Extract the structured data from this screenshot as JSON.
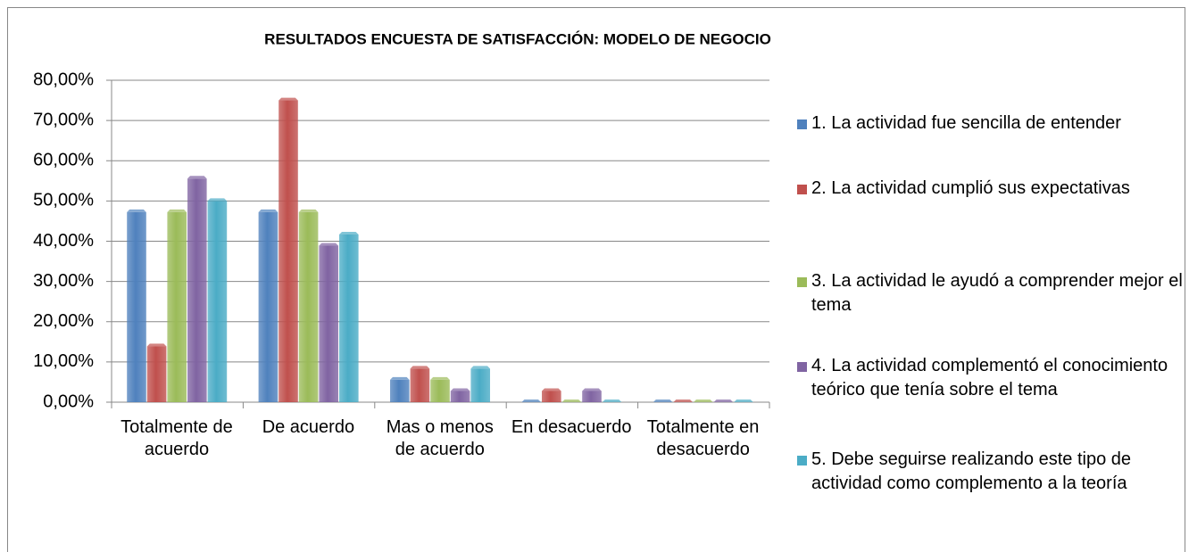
{
  "chart_data": {
    "type": "bar",
    "title": "RESULTADOS ENCUESTA DE SATISFACCIÓN: MODELO DE NEGOCIO",
    "categories": [
      "Totalmente de acuerdo",
      "De acuerdo",
      "Mas o menos de acuerdo",
      "En desacuerdo",
      "Totalmente en desacuerdo"
    ],
    "series": [
      {
        "name": "1. La actividad fue sencilla de entender",
        "color": "#4f81bd",
        "values": [
          47.22,
          47.22,
          5.56,
          0,
          0
        ]
      },
      {
        "name": "2. La actividad cumplió sus expectativas",
        "color": "#c0504d",
        "values": [
          13.89,
          75,
          8.33,
          2.78,
          0
        ]
      },
      {
        "name": "3. La actividad le ayudó a comprender mejor el tema",
        "color": "#9bbb59",
        "values": [
          47.22,
          47.22,
          5.56,
          0,
          0
        ]
      },
      {
        "name": "4. La actividad complementó el conocimiento teórico que tenía sobre el tema",
        "color": "#8064a2",
        "values": [
          55.56,
          38.89,
          2.78,
          2.78,
          0
        ]
      },
      {
        "name": "5. Debe seguirse realizando este tipo de actividad como complemento a la teoría",
        "color": "#4bacc6",
        "values": [
          50,
          41.67,
          8.33,
          0,
          0
        ]
      }
    ],
    "ylim": [
      0,
      80
    ],
    "yticks": [
      {
        "value": 0,
        "label": "0,00%"
      },
      {
        "value": 10,
        "label": "10,00%"
      },
      {
        "value": 20,
        "label": "20,00%"
      },
      {
        "value": 30,
        "label": "30,00%"
      },
      {
        "value": 40,
        "label": "40,00%"
      },
      {
        "value": 50,
        "label": "50,00%"
      },
      {
        "value": 60,
        "label": "60,00%"
      },
      {
        "value": 70,
        "label": "70,00%"
      },
      {
        "value": 80,
        "label": "80,00%"
      }
    ],
    "grid": true,
    "legend": "right"
  }
}
